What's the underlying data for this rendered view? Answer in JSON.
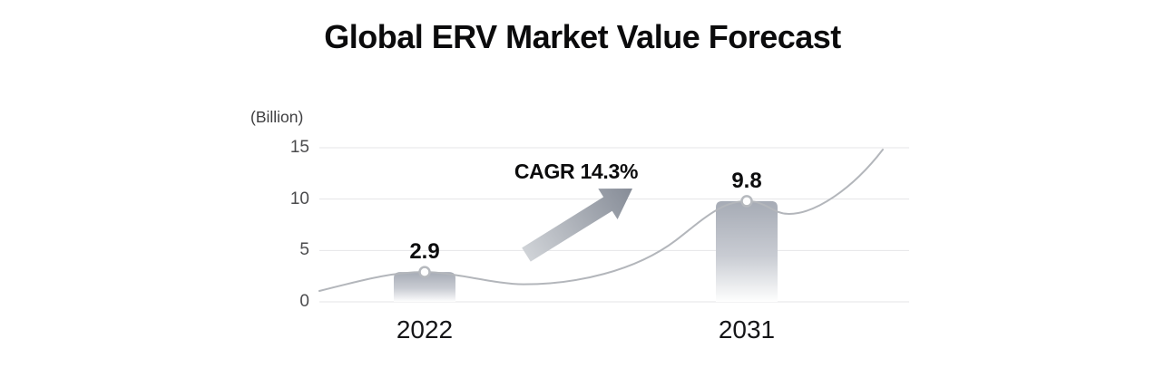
{
  "title": "Global ERV Market Value Forecast",
  "chart_data": {
    "type": "bar",
    "title": "Global ERV Market Value Forecast",
    "unit_label": "(Billion)",
    "categories": [
      "2022",
      "2031"
    ],
    "values": [
      2.9,
      9.8
    ],
    "value_labels": [
      "2.9",
      "9.8"
    ],
    "yticks": [
      15,
      10,
      5,
      0
    ],
    "ylim": [
      0,
      15
    ],
    "grid": "horizontal",
    "legend": "none",
    "annotation": {
      "text": "CAGR 14.3%",
      "type": "arrow-up-right"
    },
    "overlay": "smooth wavy trend line passing through both bar tops, rising steeply at far right"
  },
  "colors": {
    "background": "#ffffff",
    "title_text": "#0b0b0c",
    "axis_text": "#4b4b4d",
    "gridline": "#e4e5e7",
    "bar_top": "#a6abb5",
    "bar_bottom": "#fefefe",
    "trend_line": "#b3b6bb",
    "dot_fill": "#ffffff",
    "dot_stroke": "#b6b9be",
    "arrow_dark": "#868c97",
    "arrow_light": "#d4d7db"
  }
}
